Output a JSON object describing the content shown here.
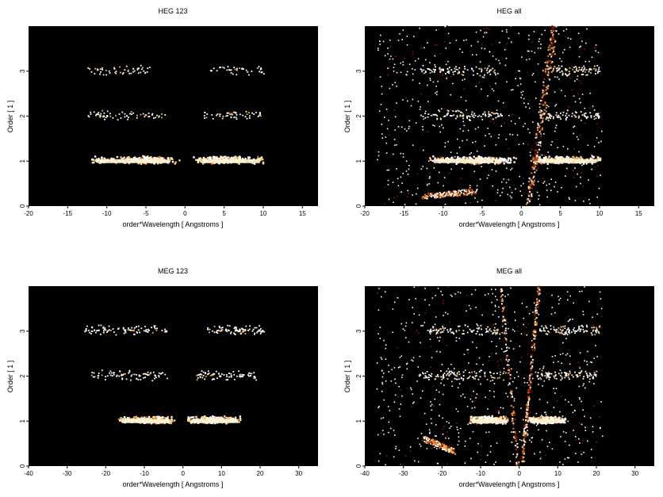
{
  "chart_data": [
    {
      "type": "heatmap",
      "title": "HEG 123",
      "xlabel": "order*Wavelength [ Angstroms ]",
      "ylabel": "Order [ 1 ]",
      "xlim": [
        -20,
        17
      ],
      "ylim": [
        0,
        4
      ],
      "xticks": [
        -20,
        -15,
        -10,
        -5,
        0,
        5,
        10,
        15
      ],
      "yticks": [
        0,
        1,
        2,
        3
      ],
      "background": "#000000",
      "colormap": [
        "#3a0000",
        "#8b1a00",
        "#d2691e",
        "#ffb347",
        "#ffffff"
      ],
      "clusters": [
        {
          "order": 1,
          "xmin": -12,
          "xmax": -2,
          "peak": -5,
          "intensity": 1.0
        },
        {
          "order": 1,
          "xmin": 1.5,
          "xmax": 10,
          "peak": 5,
          "intensity": 1.0
        },
        {
          "order": 2,
          "xmin": -12.5,
          "xmax": -2.5,
          "intensity": 0.25
        },
        {
          "order": 2,
          "xmin": 2,
          "xmax": 10,
          "intensity": 0.2
        },
        {
          "order": 3,
          "xmin": -12.5,
          "xmax": -4.5,
          "intensity": 0.2
        },
        {
          "order": 3,
          "xmin": 3,
          "xmax": 10,
          "intensity": 0.15
        }
      ],
      "streaks": [],
      "noise": 0
    },
    {
      "type": "heatmap",
      "title": "HEG all",
      "xlabel": "order*Wavelength [ Angstroms ]",
      "ylabel": "Order [ 1 ]",
      "xlim": [
        -20,
        17
      ],
      "ylim": [
        0,
        4
      ],
      "xticks": [
        -20,
        -15,
        -10,
        -5,
        0,
        5,
        10,
        15
      ],
      "yticks": [
        0,
        1,
        2,
        3
      ],
      "background": "#000000",
      "colormap": [
        "#3a0000",
        "#8b1a00",
        "#d2691e",
        "#ffb347",
        "#ffffff"
      ],
      "clusters": [
        {
          "order": 1,
          "xmin": -12,
          "xmax": -2,
          "peak": -5,
          "intensity": 1.0
        },
        {
          "order": 1,
          "xmin": 1.5,
          "xmax": 10,
          "peak": 5,
          "intensity": 1.0
        },
        {
          "order": 2,
          "xmin": -13,
          "xmax": -2.5,
          "intensity": 0.35
        },
        {
          "order": 2,
          "xmin": 2,
          "xmax": 10,
          "intensity": 0.3
        },
        {
          "order": 3,
          "xmin": -13,
          "xmax": -3,
          "intensity": 0.3
        },
        {
          "order": 3,
          "xmin": 3,
          "xmax": 10,
          "intensity": 0.3
        }
      ],
      "streaks": [
        {
          "x0": 0.8,
          "y0": 0,
          "x1": 4.2,
          "y1": 4,
          "intensity": 0.8
        },
        {
          "x0": -12.5,
          "y0": 0.2,
          "x1": -6,
          "y1": 0.3,
          "intensity": 0.7
        }
      ],
      "noise": 0.9
    },
    {
      "type": "heatmap",
      "title": "MEG 123",
      "xlabel": "order*Wavelength [ Angstroms ]",
      "ylabel": "Order [ 1 ]",
      "xlim": [
        -40,
        35
      ],
      "ylim": [
        0,
        4
      ],
      "xticks": [
        -40,
        -30,
        -20,
        -10,
        0,
        10,
        20,
        30
      ],
      "yticks": [
        0,
        1,
        2,
        3
      ],
      "background": "#000000",
      "colormap": [
        "#3a0000",
        "#8b1a00",
        "#d2691e",
        "#ffb347",
        "#ffffff"
      ],
      "clusters": [
        {
          "order": 1,
          "xmin": -17,
          "xmax": -3,
          "peak": -8,
          "intensity": 1.0
        },
        {
          "order": 1,
          "xmin": 1,
          "xmax": 15,
          "peak": 7,
          "intensity": 1.0
        },
        {
          "order": 2,
          "xmin": -24,
          "xmax": -4,
          "intensity": 0.3
        },
        {
          "order": 2,
          "xmin": 3,
          "xmax": 19,
          "intensity": 0.3
        },
        {
          "order": 3,
          "xmin": -26,
          "xmax": -4,
          "intensity": 0.35
        },
        {
          "order": 3,
          "xmin": 6,
          "xmax": 21,
          "intensity": 0.35
        }
      ],
      "streaks": [],
      "noise": 0
    },
    {
      "type": "heatmap",
      "title": "MEG all",
      "xlabel": "order*Wavelength [ Angstroms ]",
      "ylabel": "Order [ 1 ]",
      "xlim": [
        -40,
        35
      ],
      "ylim": [
        0,
        4
      ],
      "xticks": [
        -40,
        -30,
        -20,
        -10,
        0,
        10,
        20,
        30
      ],
      "yticks": [
        0,
        1,
        2,
        3
      ],
      "background": "#000000",
      "colormap": [
        "#3a0000",
        "#8b1a00",
        "#d2691e",
        "#ffb347",
        "#ffffff"
      ],
      "clusters": [
        {
          "order": 1,
          "xmin": -13,
          "xmax": -3,
          "peak": -8,
          "intensity": 1.0
        },
        {
          "order": 1,
          "xmin": 2,
          "xmax": 12,
          "peak": 7,
          "intensity": 1.0
        },
        {
          "order": 2,
          "xmin": -26,
          "xmax": -4,
          "intensity": 0.35
        },
        {
          "order": 2,
          "xmin": 4,
          "xmax": 20,
          "intensity": 0.35
        },
        {
          "order": 3,
          "xmin": -26,
          "xmax": -4,
          "intensity": 0.35
        },
        {
          "order": 3,
          "xmin": 5,
          "xmax": 21,
          "intensity": 0.35
        }
      ],
      "streaks": [
        {
          "x0": 0.5,
          "y0": 0,
          "x1": 5,
          "y1": 4,
          "intensity": 0.75
        },
        {
          "x0": -0.5,
          "y0": 0,
          "x1": -5,
          "y1": 4,
          "intensity": 0.4
        },
        {
          "x0": -25,
          "y0": 0.6,
          "x1": -17,
          "y1": 0.3,
          "intensity": 0.7
        }
      ],
      "noise": 0.9
    }
  ]
}
